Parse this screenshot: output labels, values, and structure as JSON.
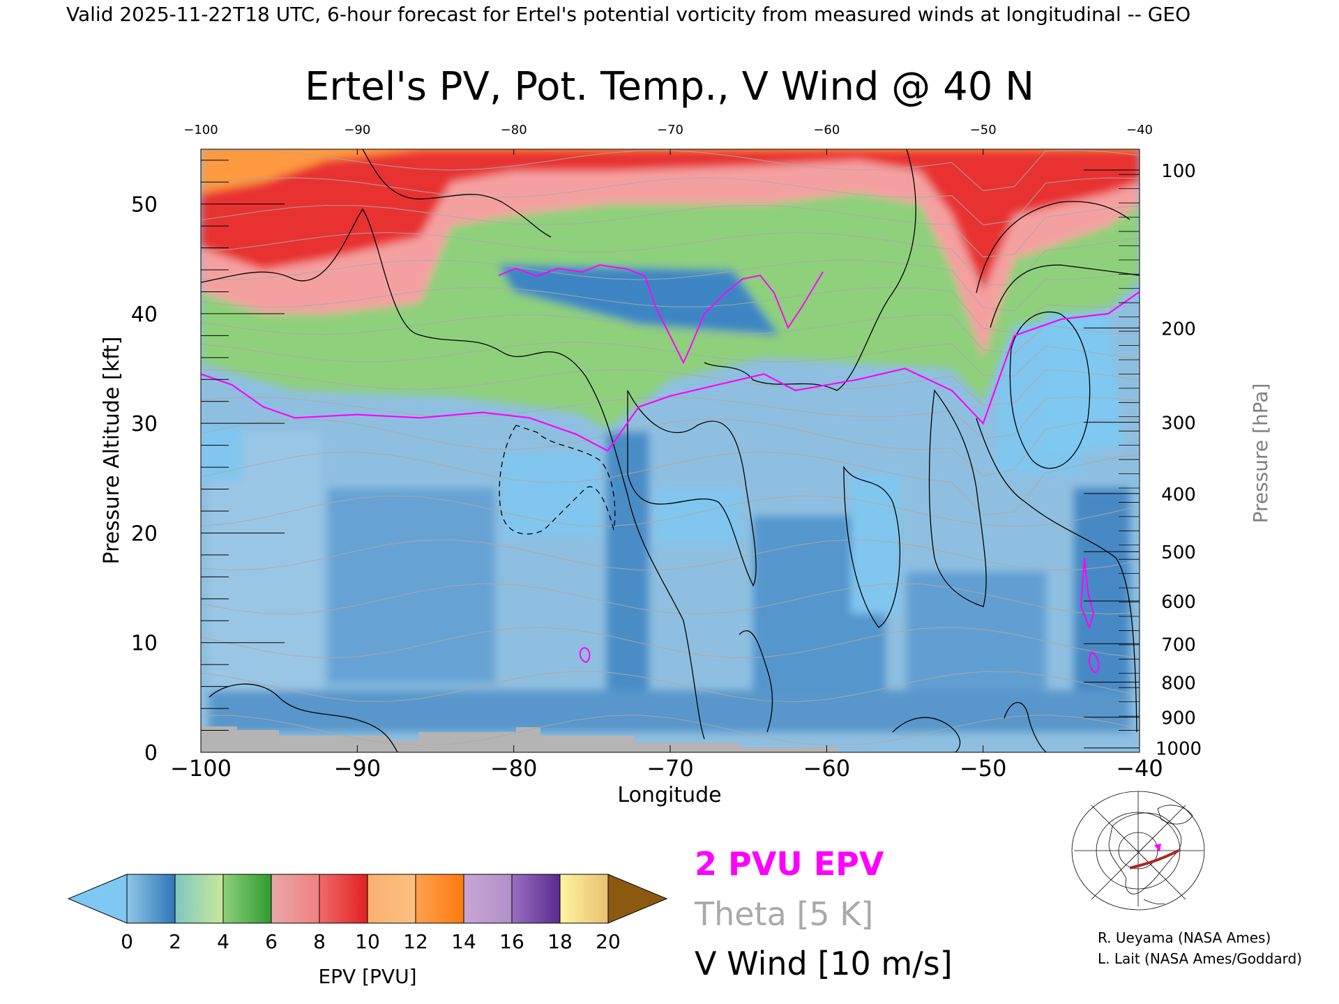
{
  "header": {
    "valid_line": "Valid 2025-11-22T18 UTC, 6-hour forecast for Ertel's potential vorticity from measured winds at longitudinal -- GEO"
  },
  "chart_data": {
    "type": "heatmap",
    "title": "Ertel's PV, Pot. Temp., V Wind @ 40 N",
    "xlabel": "Longitude",
    "ylabel": "Pressure Altitude [kft]",
    "y2label": "Pressure [hPa]",
    "xlim": [
      -100,
      -40
    ],
    "ylim": [
      0,
      55
    ],
    "x_ticks": [
      -100,
      -90,
      -80,
      -70,
      -60,
      -50,
      -40
    ],
    "x_tick_labels": [
      "−100",
      "−90",
      "−80",
      "−70",
      "−60",
      "−50",
      "−40"
    ],
    "top_tick_labels": [
      "−100",
      "−90",
      "−80",
      "−70",
      "−60",
      "−50",
      "−40"
    ],
    "y_ticks": [
      0,
      10,
      20,
      30,
      40,
      50
    ],
    "pressure_levels": [
      {
        "hpa": 100,
        "kft": 53.1
      },
      {
        "hpa": 200,
        "kft": 38.7
      },
      {
        "hpa": 300,
        "kft": 30.1
      },
      {
        "hpa": 400,
        "kft": 23.6
      },
      {
        "hpa": 500,
        "kft": 18.3
      },
      {
        "hpa": 600,
        "kft": 13.8
      },
      {
        "hpa": 700,
        "kft": 9.9
      },
      {
        "hpa": 800,
        "kft": 6.4
      },
      {
        "hpa": 900,
        "kft": 3.2
      },
      {
        "hpa": 1000,
        "kft": 0.4
      }
    ],
    "colorbar": {
      "label": "EPV [PVU]",
      "ticks": [
        "0",
        "2",
        "4",
        "6",
        "8",
        "10",
        "12",
        "14",
        "16",
        "18",
        "20"
      ],
      "bins": [
        {
          "from": 0,
          "to": 2,
          "colors": [
            "#8ec6e6",
            "#2f77b7"
          ]
        },
        {
          "from": 2,
          "to": 4,
          "colors": [
            "#7fc7c0",
            "#c9e89a"
          ]
        },
        {
          "from": 4,
          "to": 6,
          "colors": [
            "#8fd07b",
            "#2e9a2e"
          ]
        },
        {
          "from": 6,
          "to": 8,
          "colors": [
            "#e8a8a8",
            "#f08080"
          ]
        },
        {
          "from": 8,
          "to": 10,
          "colors": [
            "#f06a6a",
            "#e02020"
          ]
        },
        {
          "from": 10,
          "to": 12,
          "colors": [
            "#fbb070",
            "#fbc080"
          ]
        },
        {
          "from": 12,
          "to": 14,
          "colors": [
            "#ffa050",
            "#ff7a10"
          ]
        },
        {
          "from": 14,
          "to": 16,
          "colors": [
            "#c9a6d6",
            "#b090c8"
          ]
        },
        {
          "from": 16,
          "to": 18,
          "colors": [
            "#9a70c0",
            "#5a2a90"
          ]
        },
        {
          "from": 18,
          "to": 20,
          "colors": [
            "#fff5a0",
            "#e8c070"
          ]
        }
      ],
      "under_color": "#7ec8f2",
      "over_color": "#8b5a10"
    },
    "pv2_tropopause_kft": [
      {
        "lon": -100,
        "kft": 34.5
      },
      {
        "lon": -98,
        "kft": 33.5
      },
      {
        "lon": -96,
        "kft": 31.5
      },
      {
        "lon": -94,
        "kft": 30.5
      },
      {
        "lon": -90,
        "kft": 30.8
      },
      {
        "lon": -86,
        "kft": 30.5
      },
      {
        "lon": -82,
        "kft": 31.0
      },
      {
        "lon": -79,
        "kft": 30.5
      },
      {
        "lon": -76,
        "kft": 29.0
      },
      {
        "lon": -74,
        "kft": 27.5
      },
      {
        "lon": -72,
        "kft": 31.5
      },
      {
        "lon": -70,
        "kft": 32.5
      },
      {
        "lon": -67,
        "kft": 33.5
      },
      {
        "lon": -64,
        "kft": 34.5
      },
      {
        "lon": -62,
        "kft": 33.0
      },
      {
        "lon": -58,
        "kft": 34.0
      },
      {
        "lon": -55,
        "kft": 35.0
      },
      {
        "lon": -52,
        "kft": 33.0
      },
      {
        "lon": -50,
        "kft": 30.0
      },
      {
        "lon": -48,
        "kft": 38.0
      },
      {
        "lon": -45,
        "kft": 39.5
      },
      {
        "lon": -42,
        "kft": 40.0
      },
      {
        "lon": -40,
        "kft": 42.0
      }
    ],
    "theta_isentropes_K": [
      "300",
      "310",
      "320",
      "330",
      "340",
      "350",
      "360",
      "370",
      "380",
      "390",
      "400",
      "410"
    ],
    "legend": [
      {
        "label": "2 PVU EPV",
        "color": "#ff00ff"
      },
      {
        "label": "Theta [5 K]",
        "color": "#a9a9a9"
      },
      {
        "label": "V Wind [10 m/s]",
        "color": "#000000"
      }
    ]
  },
  "credits": {
    "line1": "R. Ueyama (NASA Ames)",
    "line2": "L. Lait (NASA Ames/Goddard)"
  },
  "colors": {
    "pv2": "#ff00ff",
    "theta": "#a9a9a9",
    "wind": "#000000",
    "terrain": "#b4b4b4",
    "map_marker": "#ff00ff",
    "map_section": "#b22222"
  }
}
